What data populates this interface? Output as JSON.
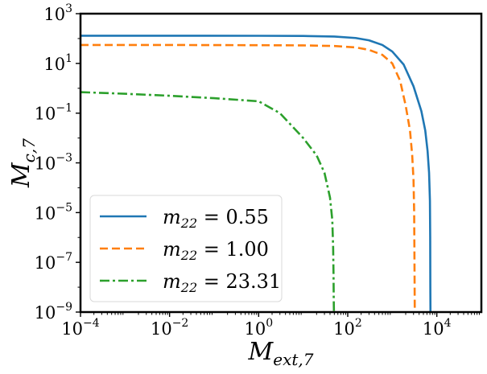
{
  "chart_data": {
    "type": "line",
    "title": "",
    "xlabel": {
      "base": "M",
      "sub": "ext,7"
    },
    "ylabel": {
      "base": "M",
      "sub": "c,7"
    },
    "xscale": "log",
    "yscale": "log",
    "xlim": [
      0.0001,
      100000
    ],
    "ylim": [
      1e-09,
      1000
    ],
    "grid": false,
    "legend_position": "lower-left",
    "x_ticks": [
      {
        "value": 0.0001,
        "base": "10",
        "exp": "−4"
      },
      {
        "value": 0.01,
        "base": "10",
        "exp": "−2"
      },
      {
        "value": 1,
        "base": "10",
        "exp": "0"
      },
      {
        "value": 100,
        "base": "10",
        "exp": "2"
      },
      {
        "value": 10000,
        "base": "10",
        "exp": "4"
      }
    ],
    "y_ticks": [
      {
        "value": 1e-09,
        "base": "10",
        "exp": "−9"
      },
      {
        "value": 1e-07,
        "base": "10",
        "exp": "−7"
      },
      {
        "value": 1e-05,
        "base": "10",
        "exp": "−5"
      },
      {
        "value": 0.001,
        "base": "10",
        "exp": "−3"
      },
      {
        "value": 0.1,
        "base": "10",
        "exp": "−1"
      },
      {
        "value": 10,
        "base": "10",
        "exp": "1"
      },
      {
        "value": 1000,
        "base": "10",
        "exp": "3"
      }
    ],
    "series": [
      {
        "name": "m22 = 0.55",
        "legend": {
          "base": "m",
          "sub": "22",
          "rest": " = 0.55"
        },
        "color": "#1f77b4",
        "style": "solid",
        "x": [
          0.0001,
          0.01,
          1,
          10,
          50,
          150,
          300,
          600,
          1000,
          1800,
          3000,
          4500,
          5500,
          6200,
          6700,
          7000,
          7100,
          7150,
          7200
        ],
        "y": [
          130,
          130,
          129,
          127,
          120,
          105,
          85,
          55,
          30,
          9,
          1.2,
          0.12,
          0.02,
          0.003,
          0.0004,
          3e-05,
          1e-06,
          1e-08,
          1e-09
        ]
      },
      {
        "name": "m22 = 1.00",
        "legend": {
          "base": "m",
          "sub": "22",
          "rest": " = 1.00"
        },
        "color": "#ff7f0e",
        "style": "dashed",
        "x": [
          0.0001,
          0.01,
          1,
          10,
          50,
          150,
          300,
          600,
          1000,
          1500,
          2000,
          2500,
          2800,
          3000,
          3100,
          3150,
          3200
        ],
        "y": [
          55,
          55,
          54,
          53,
          50,
          44,
          35,
          22,
          10,
          2,
          0.2,
          0.02,
          0.002,
          0.0002,
          1e-05,
          1e-07,
          1e-09
        ]
      },
      {
        "name": "m22 = 23.31",
        "legend": {
          "base": "m",
          "sub": "22",
          "rest": " = 23.31"
        },
        "color": "#2ca02c",
        "style": "dashdot",
        "x": [
          0.0001,
          0.001,
          0.01,
          0.1,
          1,
          3,
          10,
          20,
          30,
          40,
          45,
          47,
          48,
          48.5,
          49
        ],
        "y": [
          0.7,
          0.6,
          0.5,
          0.4,
          0.3,
          0.1,
          0.01,
          0.002,
          0.0004,
          4e-05,
          5e-06,
          4e-07,
          3e-08,
          3e-09,
          1e-09
        ]
      }
    ]
  }
}
